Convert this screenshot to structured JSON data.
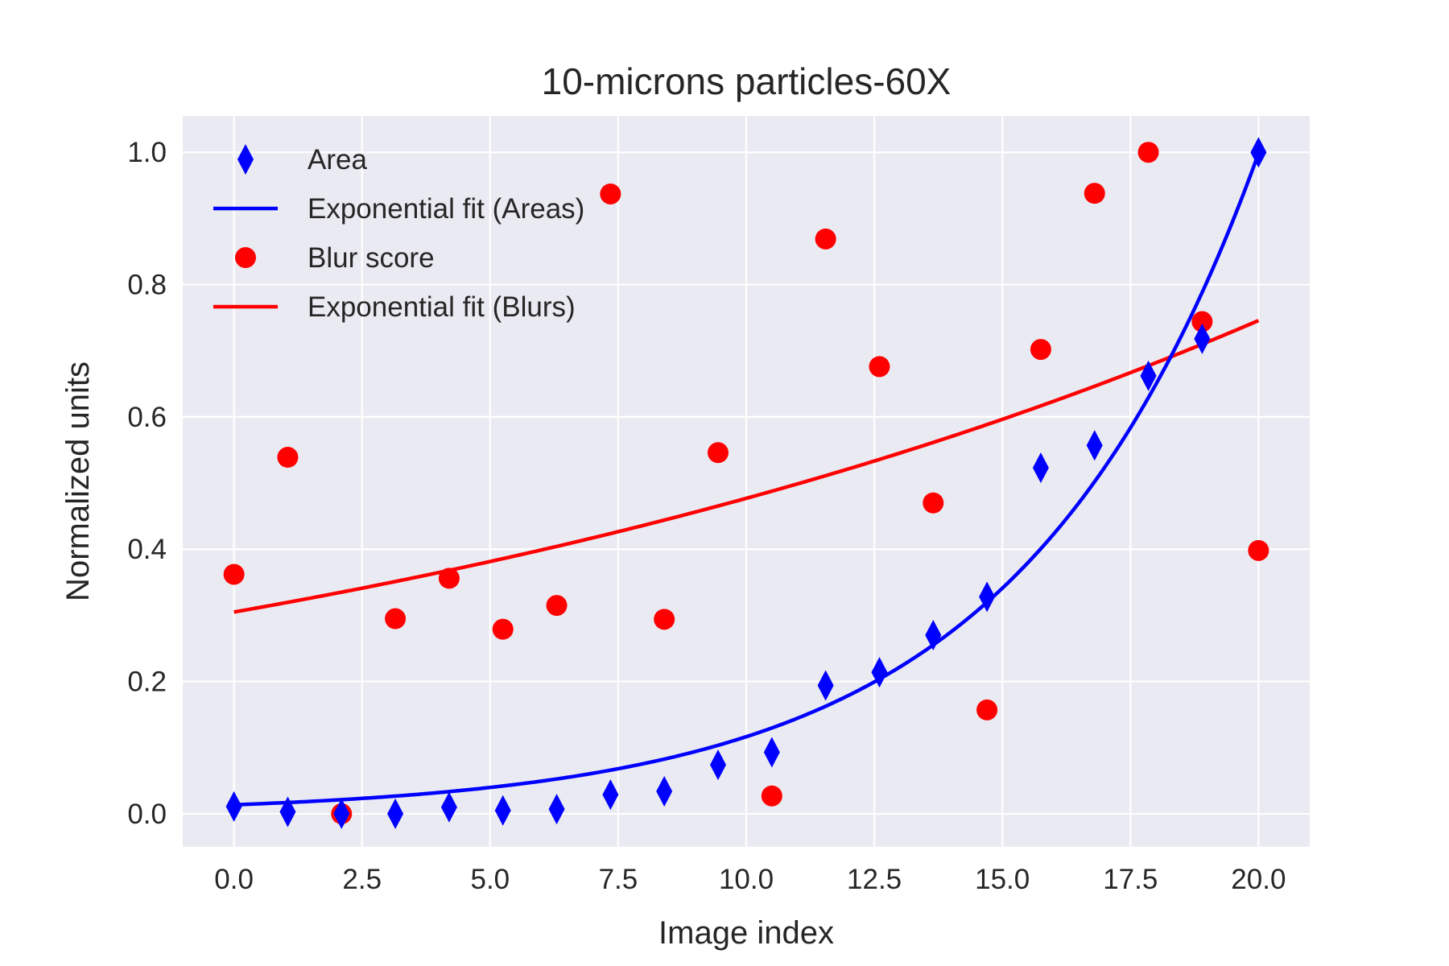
{
  "chart_data": {
    "type": "scatter",
    "title": "10-microns particles-60X",
    "xlabel": "Image index",
    "ylabel": "Normalized units",
    "xlim": [
      -1.0,
      21.0
    ],
    "ylim": [
      -0.05,
      1.055
    ],
    "xticks": [
      0.0,
      2.5,
      5.0,
      7.5,
      10.0,
      12.5,
      15.0,
      17.5,
      20.0
    ],
    "xtick_labels": [
      "0.0",
      "2.5",
      "5.0",
      "7.5",
      "10.0",
      "12.5",
      "15.0",
      "17.5",
      "20.0"
    ],
    "yticks": [
      0.0,
      0.2,
      0.4,
      0.6,
      0.8,
      1.0
    ],
    "ytick_labels": [
      "0.0",
      "0.2",
      "0.4",
      "0.6",
      "0.8",
      "1.0"
    ],
    "grid": true,
    "legend_position": "upper-left",
    "background_color": "#eaeaf2",
    "series": [
      {
        "name": "Area",
        "kind": "scatter",
        "marker": "thin-diamond",
        "color": "#0000ff",
        "x": [
          0,
          1.05,
          2.1,
          3.15,
          4.2,
          5.25,
          6.3,
          7.35,
          8.4,
          9.45,
          10.5,
          11.55,
          12.6,
          13.65,
          14.7,
          15.75,
          16.8,
          17.85,
          18.9,
          20.0
        ],
        "y": [
          0.011,
          0.003,
          0.0,
          0.0,
          0.01,
          0.005,
          0.007,
          0.029,
          0.034,
          0.074,
          0.093,
          0.194,
          0.214,
          0.27,
          0.328,
          0.523,
          0.557,
          0.662,
          0.718,
          1.0
        ]
      },
      {
        "name": "Exponential fit (Areas)",
        "kind": "line",
        "color": "#0000ff",
        "model": "exponential",
        "a": 0.0136,
        "b": 0.2148,
        "x_range": [
          0,
          20
        ]
      },
      {
        "name": "Blur score",
        "kind": "scatter",
        "marker": "circle",
        "color": "#ff0000",
        "x": [
          0,
          1.05,
          2.1,
          3.15,
          4.2,
          5.25,
          6.3,
          7.35,
          8.4,
          9.45,
          10.5,
          11.55,
          12.6,
          13.65,
          14.7,
          15.75,
          16.8,
          17.85,
          18.9,
          20.0
        ],
        "y": [
          0.362,
          0.539,
          0.0,
          0.295,
          0.356,
          0.279,
          0.315,
          0.937,
          0.294,
          0.546,
          0.027,
          0.869,
          0.676,
          0.47,
          0.157,
          0.702,
          0.938,
          1.0,
          0.744,
          0.398
        ]
      },
      {
        "name": "Exponential fit (Blurs)",
        "kind": "line",
        "color": "#ff0000",
        "model": "exponential",
        "a": 0.305,
        "b": 0.0447,
        "x_range": [
          0,
          20
        ]
      }
    ]
  }
}
